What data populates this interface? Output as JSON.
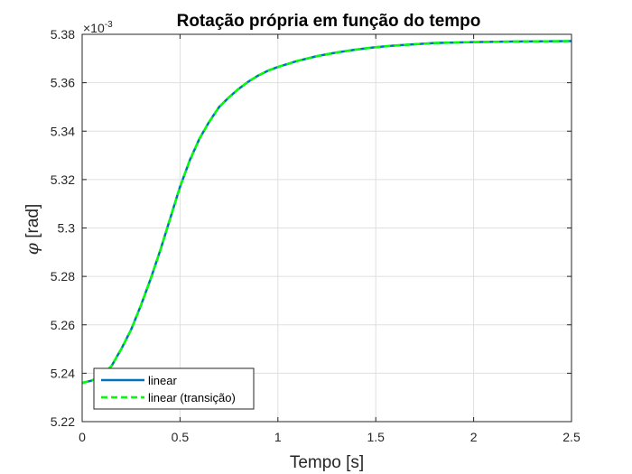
{
  "chart_data": {
    "type": "line",
    "title": "Rotação própria em função do tempo",
    "xlabel": "Tempo [s]",
    "ylabel_symbol": "φ",
    "ylabel_unit": " [rad]",
    "y_exponent_prefix": "×10",
    "y_exponent": "-3",
    "xlim": [
      0,
      2.5
    ],
    "ylim": [
      5.22,
      5.38
    ],
    "xticks": [
      0,
      0.5,
      1,
      1.5,
      2,
      2.5
    ],
    "xtick_labels": [
      "0",
      "0.5",
      "1",
      "1.5",
      "2",
      "2.5"
    ],
    "yticks": [
      5.22,
      5.24,
      5.26,
      5.28,
      5.3,
      5.32,
      5.34,
      5.36,
      5.38
    ],
    "ytick_labels": [
      "5.22",
      "5.24",
      "5.26",
      "5.28",
      "5.3",
      "5.32",
      "5.34",
      "5.36",
      "5.38"
    ],
    "grid": true,
    "legend_position": "bottom-left",
    "series": [
      {
        "name": "linear",
        "color": "#0072BD",
        "style": "solid",
        "x": [
          0,
          0.05,
          0.1,
          0.15,
          0.2,
          0.25,
          0.3,
          0.35,
          0.4,
          0.45,
          0.5,
          0.55,
          0.6,
          0.65,
          0.7,
          0.75,
          0.8,
          0.85,
          0.9,
          0.95,
          1.0,
          1.1,
          1.2,
          1.3,
          1.4,
          1.5,
          1.6,
          1.8,
          2.0,
          2.2,
          2.5
        ],
        "y": [
          5.236,
          5.237,
          5.239,
          5.243,
          5.25,
          5.258,
          5.268,
          5.279,
          5.291,
          5.304,
          5.317,
          5.328,
          5.337,
          5.344,
          5.35,
          5.354,
          5.3575,
          5.3605,
          5.363,
          5.365,
          5.3665,
          5.369,
          5.371,
          5.3725,
          5.3737,
          5.3747,
          5.3754,
          5.3764,
          5.3768,
          5.377,
          5.3772
        ]
      },
      {
        "name": "linear (transição)",
        "color": "#00FF00",
        "style": "dashed",
        "x": [
          0,
          0.05,
          0.1,
          0.15,
          0.2,
          0.25,
          0.3,
          0.35,
          0.4,
          0.45,
          0.5,
          0.55,
          0.6,
          0.65,
          0.7,
          0.75,
          0.8,
          0.85,
          0.9,
          0.95,
          1.0,
          1.1,
          1.2,
          1.3,
          1.4,
          1.5,
          1.6,
          1.8,
          2.0,
          2.2,
          2.5
        ],
        "y": [
          5.236,
          5.237,
          5.239,
          5.243,
          5.25,
          5.258,
          5.268,
          5.279,
          5.291,
          5.304,
          5.317,
          5.328,
          5.337,
          5.344,
          5.35,
          5.354,
          5.3575,
          5.3605,
          5.363,
          5.365,
          5.3665,
          5.369,
          5.371,
          5.3725,
          5.3737,
          5.3747,
          5.3754,
          5.3764,
          5.3768,
          5.377,
          5.3772
        ]
      }
    ]
  }
}
